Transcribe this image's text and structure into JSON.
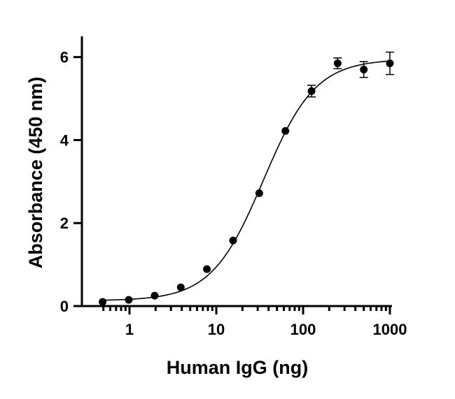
{
  "chart_data": {
    "type": "scatter",
    "title": "",
    "xlabel": "Human IgG (ng)",
    "ylabel": "Absorbance (450 nm)",
    "x_scale": "log",
    "xlim": [
      0.45,
      1000
    ],
    "ylim": [
      0,
      6.5
    ],
    "x_ticks": [
      1,
      10,
      100,
      1000
    ],
    "x_tick_labels": [
      "1",
      "10",
      "100",
      "1000"
    ],
    "y_ticks": [
      0,
      2,
      4,
      6
    ],
    "y_tick_labels": [
      "0",
      "2",
      "4",
      "6"
    ],
    "grid": false,
    "legend": "none",
    "series": [
      {
        "x": [
          0.49,
          0.98,
          1.95,
          3.9,
          7.8,
          15.6,
          31.25,
          62.5,
          125,
          250,
          500,
          1000
        ],
        "y": [
          0.1,
          0.15,
          0.25,
          0.45,
          0.89,
          1.58,
          2.72,
          4.22,
          5.18,
          5.85,
          5.7,
          5.85
        ],
        "err": [
          0.02,
          0.02,
          0.02,
          0.03,
          0.03,
          0.04,
          0.08,
          0.05,
          0.14,
          0.13,
          0.19,
          0.27
        ]
      }
    ],
    "fit_curve": {
      "model": "4PL",
      "bottom": 0.13,
      "top": 5.95,
      "ec50": 35,
      "hill": 1.45
    }
  }
}
